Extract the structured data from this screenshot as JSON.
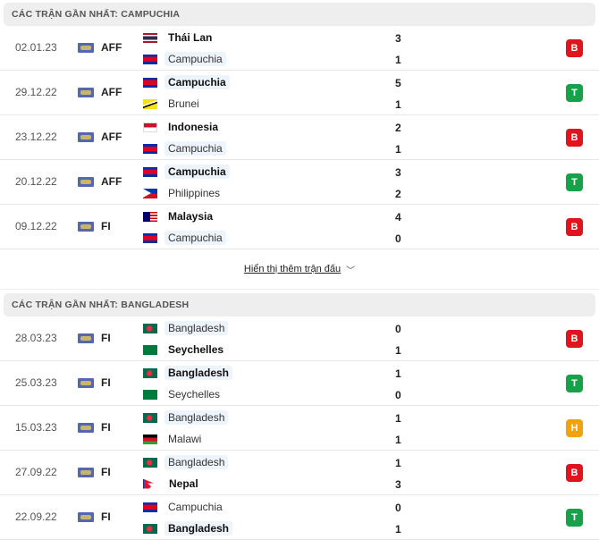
{
  "colors": {
    "loss": "#e0141e",
    "win": "#17a14a",
    "draw": "#f0a30a"
  },
  "sections": [
    {
      "title": "CÁC TRẬN GẦN NHẤT: CAMPUCHIA",
      "more": "Hiển thị thêm trận đấu",
      "matches": [
        {
          "date": "02.01.23",
          "league": "AFF",
          "home": {
            "name": "Thái Lan",
            "flag": "TH",
            "hl": false,
            "win": true
          },
          "away": {
            "name": "Campuchia",
            "flag": "KH",
            "hl": true,
            "win": false
          },
          "hs": "3",
          "as": "1",
          "result": "B"
        },
        {
          "date": "29.12.22",
          "league": "AFF",
          "home": {
            "name": "Campuchia",
            "flag": "KH",
            "hl": true,
            "win": true
          },
          "away": {
            "name": "Brunei",
            "flag": "BN",
            "hl": false,
            "win": false
          },
          "hs": "5",
          "as": "1",
          "result": "T"
        },
        {
          "date": "23.12.22",
          "league": "AFF",
          "home": {
            "name": "Indonesia",
            "flag": "ID",
            "hl": false,
            "win": true
          },
          "away": {
            "name": "Campuchia",
            "flag": "KH",
            "hl": true,
            "win": false
          },
          "hs": "2",
          "as": "1",
          "result": "B"
        },
        {
          "date": "20.12.22",
          "league": "AFF",
          "home": {
            "name": "Campuchia",
            "flag": "KH",
            "hl": true,
            "win": true
          },
          "away": {
            "name": "Philippines",
            "flag": "PH",
            "hl": false,
            "win": false
          },
          "hs": "3",
          "as": "2",
          "result": "T"
        },
        {
          "date": "09.12.22",
          "league": "FI",
          "home": {
            "name": "Malaysia",
            "flag": "MY",
            "hl": false,
            "win": true
          },
          "away": {
            "name": "Campuchia",
            "flag": "KH",
            "hl": true,
            "win": false
          },
          "hs": "4",
          "as": "0",
          "result": "B"
        }
      ]
    },
    {
      "title": "CÁC TRẬN GẦN NHẤT: BANGLADESH",
      "matches": [
        {
          "date": "28.03.23",
          "league": "FI",
          "home": {
            "name": "Bangladesh",
            "flag": "BD",
            "hl": true,
            "win": false
          },
          "away": {
            "name": "Seychelles",
            "flag": "SC",
            "hl": false,
            "win": true
          },
          "hs": "0",
          "as": "1",
          "result": "B"
        },
        {
          "date": "25.03.23",
          "league": "FI",
          "home": {
            "name": "Bangladesh",
            "flag": "BD",
            "hl": true,
            "win": true
          },
          "away": {
            "name": "Seychelles",
            "flag": "SC",
            "hl": false,
            "win": false
          },
          "hs": "1",
          "as": "0",
          "result": "T"
        },
        {
          "date": "15.03.23",
          "league": "FI",
          "home": {
            "name": "Bangladesh",
            "flag": "BD",
            "hl": true,
            "win": false
          },
          "away": {
            "name": "Malawi",
            "flag": "MW",
            "hl": false,
            "win": false
          },
          "hs": "1",
          "as": "1",
          "result": "H"
        },
        {
          "date": "27.09.22",
          "league": "FI",
          "home": {
            "name": "Bangladesh",
            "flag": "BD",
            "hl": true,
            "win": false
          },
          "away": {
            "name": "Nepal",
            "flag": "NP",
            "hl": false,
            "win": true
          },
          "hs": "1",
          "as": "3",
          "result": "B"
        },
        {
          "date": "22.09.22",
          "league": "FI",
          "home": {
            "name": "Campuchia",
            "flag": "KH",
            "hl": false,
            "win": false
          },
          "away": {
            "name": "Bangladesh",
            "flag": "BD",
            "hl": true,
            "win": true
          },
          "hs": "0",
          "as": "1",
          "result": "T"
        }
      ]
    }
  ]
}
